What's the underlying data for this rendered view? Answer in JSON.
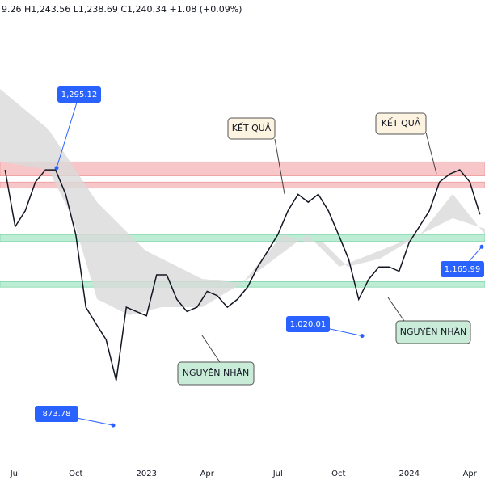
{
  "chart_data": {
    "type": "line",
    "header": "9.26 H1,243.56 L1,238.69 C1,240.34 +1.08 (+0.09%)",
    "categories": [
      null,
      "Jul",
      null,
      null,
      null,
      null,
      null,
      "Oct",
      null,
      null,
      null,
      null,
      null,
      null,
      "2023",
      null,
      null,
      null,
      null,
      null,
      "Apr",
      null,
      null,
      null,
      null,
      null,
      null,
      "Jul",
      null,
      null,
      null,
      null,
      null,
      "Oct",
      null,
      null,
      null,
      null,
      null,
      null,
      "2024",
      null,
      null,
      null,
      null,
      null,
      "Apr",
      null
    ],
    "series": [
      {
        "color": "#131722",
        "values": [
          1292,
          1199,
          1225,
          1272,
          1292,
          1292,
          1252,
          1186,
          1067,
          1040,
          1014,
          947,
          1067,
          1060,
          1053,
          1120,
          1120,
          1080,
          1060,
          1067,
          1093,
          1086,
          1067,
          1080,
          1100,
          1133,
          1159,
          1186,
          1225,
          1252,
          1239,
          1252,
          1225,
          1186,
          1146,
          1080,
          1113,
          1133,
          1133,
          1126,
          1173,
          1199,
          1225,
          1272,
          1285,
          1292,
          1272,
          1219
        ]
      }
    ],
    "ylim": [
      776,
      1570
    ],
    "zones": [
      {
        "range": [
          1282,
          1305
        ],
        "color": "#f7c6c9"
      },
      {
        "range": [
          1262,
          1272
        ],
        "color": "#f7c6c9"
      },
      {
        "range": [
          1175,
          1186
        ],
        "color": "#bdeed5"
      },
      {
        "range": [
          1100,
          1109
        ],
        "color": "#bdeed5"
      }
    ],
    "callouts": {
      "values": [
        1295.12,
        873.78,
        1020.01,
        1165.99
      ],
      "value_labels": [
        "1,295.12",
        "873.78",
        "1,020.01",
        "1,165.99"
      ],
      "color": "#2962ff"
    },
    "notes": [
      "KẾT QUẢ",
      "KẾT QUẢ",
      "NGUYÊN NHÂN",
      "NGUYÊN NHÂN"
    ]
  }
}
